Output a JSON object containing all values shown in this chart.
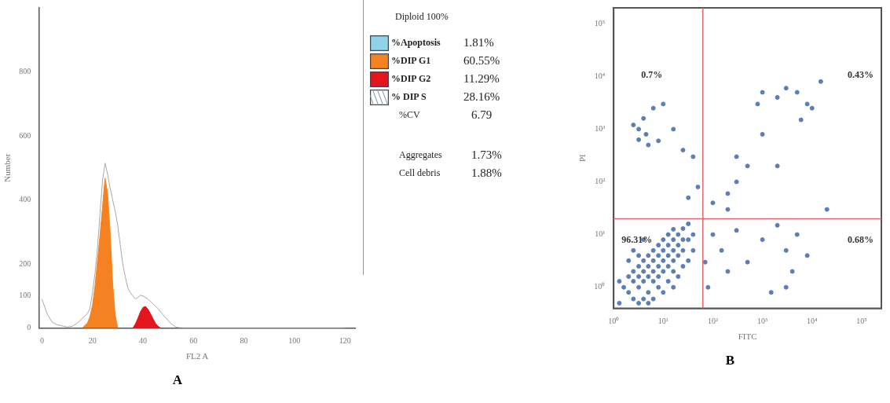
{
  "chart_data": [
    {
      "type": "line",
      "title": "A",
      "xlabel": "FL2 A",
      "ylabel": "Number",
      "xlim": [
        -1,
        124
      ],
      "ylim": [
        0,
        1000
      ],
      "xticks": [
        0,
        20,
        40,
        60,
        80,
        100,
        120
      ],
      "yticks": [
        0,
        100,
        200,
        400,
        600,
        800
      ],
      "marker": "none",
      "series": [
        {
          "type": "line",
          "color": "#a8a8a8",
          "x": [
            0,
            2,
            4,
            6,
            8,
            10,
            12,
            14,
            16,
            18,
            19,
            20,
            21,
            22,
            23,
            24,
            25,
            26,
            27,
            28,
            29,
            30,
            31,
            32,
            33,
            34,
            35,
            36,
            37,
            38,
            39,
            40,
            41,
            42,
            43,
            44,
            45,
            46,
            47,
            48,
            49,
            50,
            51,
            52,
            53,
            54,
            56,
            60,
            70,
            80,
            90,
            100,
            110,
            120
          ],
          "values": [
            90,
            45,
            18,
            10,
            6,
            3,
            5,
            15,
            30,
            45,
            60,
            110,
            170,
            250,
            360,
            460,
            515,
            480,
            437,
            400,
            365,
            320,
            260,
            200,
            160,
            125,
            110,
            100,
            90,
            95,
            102,
            100,
            95,
            90,
            82,
            75,
            68,
            60,
            50,
            41,
            32,
            22,
            15,
            8,
            3,
            1,
            0,
            0,
            0,
            0,
            0,
            0,
            0,
            0
          ]
        },
        {
          "type": "area",
          "color": "#f58220",
          "x": [
            16,
            18,
            19,
            20,
            21,
            22,
            23,
            24,
            25,
            26,
            27,
            28,
            29,
            30
          ],
          "values": [
            0,
            15,
            35,
            70,
            130,
            210,
            290,
            380,
            468,
            420,
            300,
            140,
            40,
            0
          ]
        },
        {
          "type": "area",
          "color": "#e3161c",
          "x": [
            36,
            37,
            38,
            39,
            40,
            41,
            42,
            43,
            44,
            45,
            46,
            47
          ],
          "values": [
            0,
            12,
            30,
            50,
            64,
            67,
            58,
            44,
            28,
            14,
            5,
            0
          ]
        }
      ],
      "annotations": [
        "Diploid 100%",
        "%Apoptosis",
        "1.81%",
        "%DIP G1",
        "60.55%",
        "%DIP G2",
        "11.29%",
        "% DIP S",
        "28.16%",
        "%CV",
        "6.79",
        "Aggregates",
        "1.73%",
        "Cell debris",
        "1.88%"
      ]
    },
    {
      "type": "scatter",
      "title": "B",
      "xlabel": "FITC",
      "ylabel": "PI",
      "log": "xy",
      "xlim": [
        1,
        250000
      ],
      "ylim": [
        0.4,
        200000
      ],
      "marker": "circle",
      "xticks": [
        {
          "value": 1,
          "label": "10⁰"
        },
        {
          "value": 10,
          "label": "10¹"
        },
        {
          "value": 100,
          "label": "10²"
        },
        {
          "value": 1000,
          "label": "10³"
        },
        {
          "value": 10000,
          "label": "10⁴"
        },
        {
          "value": 100000,
          "label": "10⁵"
        }
      ],
      "yticks": [
        {
          "value": 1,
          "label": "10⁰"
        },
        {
          "value": 10,
          "label": "10¹"
        },
        {
          "value": 100,
          "label": "10²"
        },
        {
          "value": 1000,
          "label": "10³"
        },
        {
          "value": 10000,
          "label": "10⁴"
        },
        {
          "value": 100000,
          "label": "10⁵"
        }
      ],
      "series": [
        {
          "color": "#5b7fb5",
          "x": [
            1.6,
            2,
            2,
            2.5,
            2.5,
            2.5,
            3.2,
            3.2,
            3.2,
            3.2,
            4,
            4,
            4,
            4,
            5,
            5,
            5,
            5,
            6.3,
            6.3,
            6.3,
            6.3,
            6.3,
            8,
            8,
            8,
            8,
            8,
            10,
            10,
            10,
            10,
            10,
            12.6,
            12.6,
            12.6,
            12.6,
            12.6,
            16,
            16,
            16,
            16,
            16,
            16,
            20,
            20,
            20,
            20,
            25,
            25,
            25,
            25,
            32,
            32,
            32,
            40,
            40,
            1.3,
            1.3,
            2,
            3.2,
            2.5,
            5,
            4,
            3.2,
            4,
            3.2,
            4.5,
            5,
            2.5,
            6.3,
            8,
            10,
            16,
            25,
            40,
            50,
            32,
            100,
            200,
            300,
            500,
            800,
            1000,
            2000,
            3000,
            5000,
            8000,
            1000,
            300,
            2000,
            6000,
            10000,
            15000,
            20000,
            200,
            100,
            150,
            300,
            500,
            1000,
            2000,
            3000,
            4000,
            5000,
            8000,
            3000,
            1500,
            200,
            70,
            80
          ],
          "values": [
            1,
            0.8,
            1.6,
            0.6,
            1.3,
            2,
            0.5,
            1,
            1.6,
            2.5,
            0.6,
            1.3,
            2,
            3.2,
            0.8,
            1.6,
            2.5,
            4,
            0.6,
            1.3,
            2,
            3.2,
            5,
            1,
            1.6,
            2.5,
            4,
            6.3,
            0.8,
            2,
            3.2,
            5,
            8,
            1.3,
            2.5,
            4,
            6.3,
            10,
            1,
            2,
            3.2,
            5,
            8,
            12.6,
            1.6,
            4,
            6.3,
            10,
            2.5,
            5,
            8,
            13,
            3.2,
            8,
            16,
            5,
            10,
            1.3,
            0.5,
            3.2,
            4,
            5,
            0.5,
            8,
            1000,
            1600,
            630,
            800,
            500,
            1200,
            2500,
            600,
            3000,
            1000,
            400,
            300,
            80,
            50,
            40,
            60,
            100,
            200,
            3000,
            5000,
            4000,
            6000,
            5000,
            3000,
            800,
            300,
            200,
            1500,
            2500,
            8000,
            30,
            30,
            10,
            5,
            12,
            3,
            8,
            15,
            5,
            2,
            10,
            4,
            1,
            0.8,
            2,
            3,
            1
          ]
        }
      ],
      "ref_lines": [
        {
          "axis": "x",
          "value": 63,
          "color": "#e8636b"
        },
        {
          "axis": "y",
          "value": 20,
          "color": "#e8636b"
        }
      ],
      "annotations": [
        "0.7%",
        "0.43%",
        "96.31%",
        "0.68%"
      ]
    }
  ]
}
